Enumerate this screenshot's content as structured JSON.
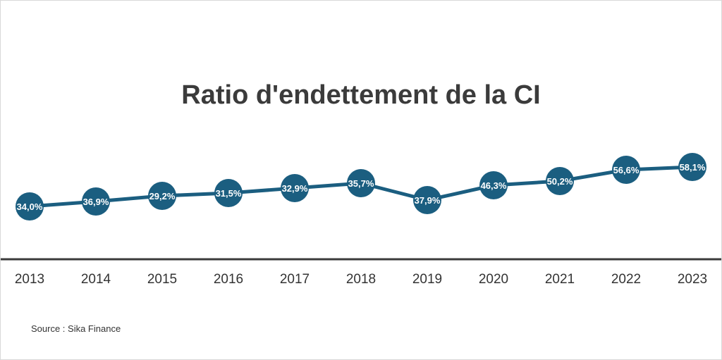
{
  "chart_data": {
    "type": "line",
    "title": "Ratio d'endettement de la CI",
    "categories": [
      "2013",
      "2014",
      "2015",
      "2016",
      "2017",
      "2018",
      "2019",
      "2020",
      "2021",
      "2022",
      "2023"
    ],
    "values": [
      34.0,
      36.9,
      29.2,
      31.5,
      32.9,
      35.7,
      37.9,
      46.3,
      50.2,
      56.6,
      58.1
    ],
    "value_labels": [
      "34,0%",
      "36,9%",
      "29,2%",
      "31,5%",
      "32,9%",
      "35,7%",
      "37,9%",
      "46,3%",
      "50,2%",
      "56,6%",
      "58,1%"
    ],
    "series_color": "#1b5e80",
    "axis_color": "#3b3b3b",
    "xlabel": "",
    "ylabel": "",
    "grid": false,
    "legend": "none"
  },
  "source": "Source : Sika Finance"
}
